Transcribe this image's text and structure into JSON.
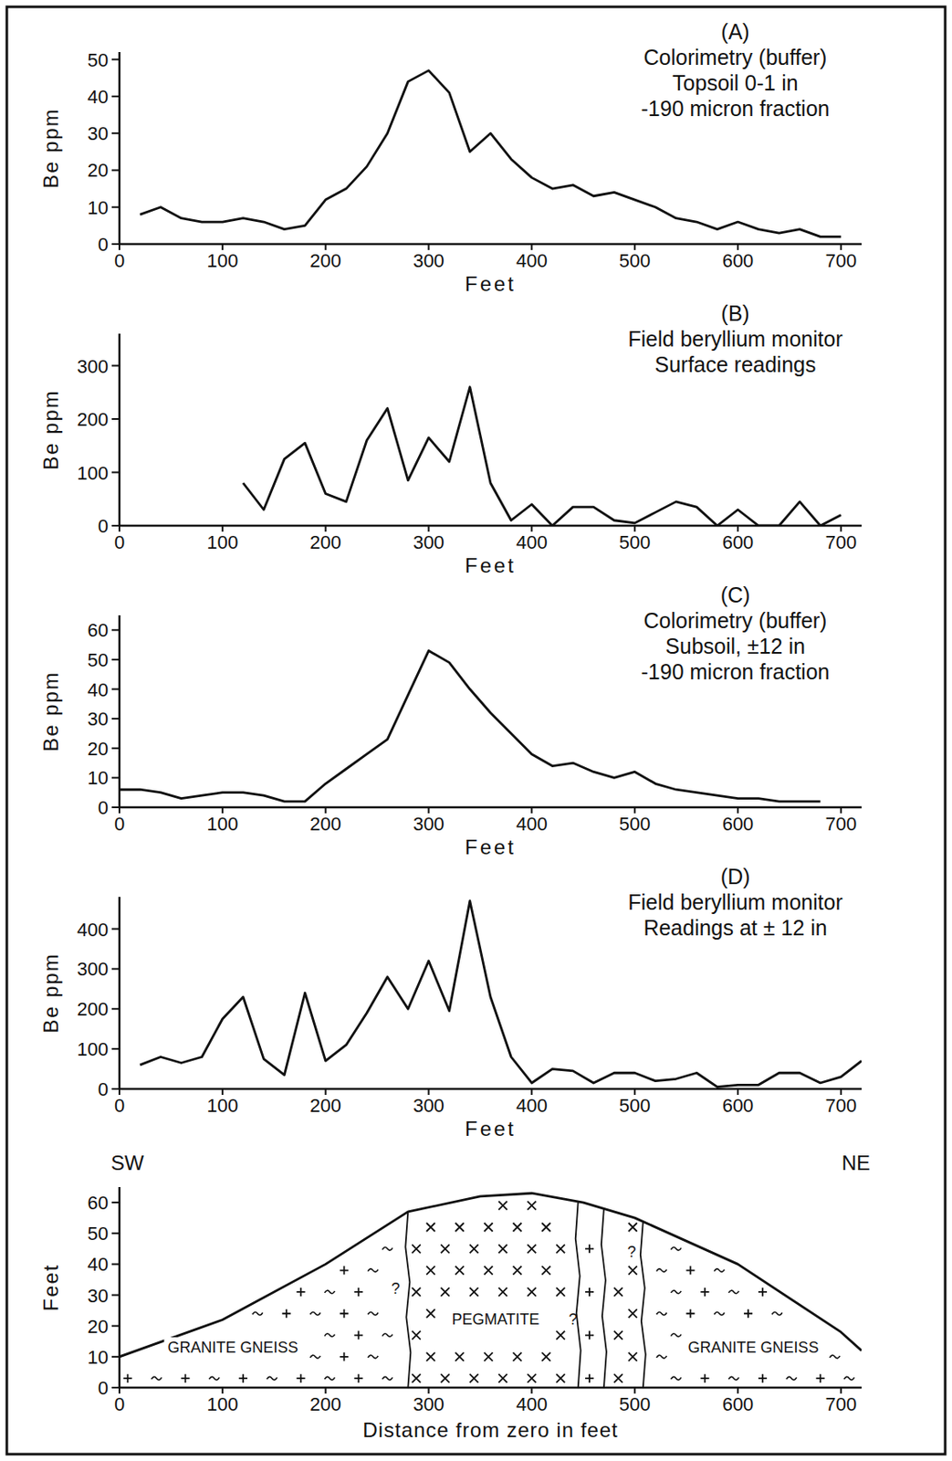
{
  "chart_data": [
    {
      "type": "line",
      "panel": "(A)",
      "title": "Colorimetry (buffer)",
      "subtitle": [
        "Topsoil  0-1 in",
        "-190 micron fraction"
      ],
      "x": [
        20,
        40,
        60,
        80,
        100,
        120,
        140,
        160,
        180,
        200,
        220,
        240,
        260,
        280,
        300,
        320,
        340,
        360,
        380,
        400,
        420,
        440,
        460,
        480,
        500,
        520,
        540,
        560,
        580,
        600,
        620,
        640,
        660,
        680,
        700
      ],
      "values": [
        8,
        10,
        7,
        6,
        6,
        7,
        6,
        4,
        5,
        12,
        15,
        21,
        30,
        44,
        47,
        41,
        25,
        30,
        23,
        18,
        15,
        16,
        13,
        14,
        12,
        10,
        7,
        6,
        4,
        6,
        4,
        3,
        4,
        2,
        2
      ],
      "xlim": [
        0,
        720
      ],
      "xticks": [
        0,
        100,
        200,
        300,
        400,
        500,
        600,
        700
      ],
      "ylim": [
        0,
        52
      ],
      "yticks": [
        0,
        10,
        20,
        30,
        40,
        50
      ],
      "x_label": "Feet",
      "y_label": "Be ppm",
      "color": "#111111"
    },
    {
      "type": "line",
      "panel": "(B)",
      "title": "Field beryllium monitor",
      "subtitle": [
        "Surface readings"
      ],
      "x": [
        120,
        140,
        160,
        180,
        200,
        220,
        240,
        260,
        280,
        300,
        320,
        340,
        360,
        380,
        400,
        420,
        440,
        460,
        480,
        500,
        520,
        540,
        560,
        580,
        600,
        620,
        640,
        660,
        680,
        700
      ],
      "values": [
        80,
        30,
        125,
        155,
        60,
        45,
        160,
        220,
        85,
        165,
        120,
        260,
        80,
        10,
        40,
        0,
        35,
        35,
        10,
        5,
        25,
        45,
        35,
        0,
        30,
        0,
        0,
        45,
        0,
        20
      ],
      "xlim": [
        0,
        720
      ],
      "xticks": [
        0,
        100,
        200,
        300,
        400,
        500,
        600,
        700
      ],
      "ylim": [
        0,
        360
      ],
      "yticks": [
        0,
        100,
        200,
        300
      ],
      "x_label": "Feet",
      "y_label": "Be ppm",
      "color": "#111111"
    },
    {
      "type": "line",
      "panel": "(C)",
      "title": "Colorimetry (buffer)",
      "subtitle": [
        "Subsoil, ±12 in",
        "-190 micron fraction"
      ],
      "x": [
        0,
        20,
        40,
        60,
        80,
        100,
        120,
        140,
        160,
        180,
        200,
        220,
        240,
        260,
        280,
        300,
        320,
        340,
        360,
        380,
        400,
        420,
        440,
        460,
        480,
        500,
        520,
        540,
        560,
        580,
        600,
        620,
        640,
        660,
        680
      ],
      "values": [
        6,
        6,
        5,
        3,
        4,
        5,
        5,
        4,
        2,
        2,
        8,
        13,
        18,
        23,
        38,
        53,
        49,
        40,
        32,
        25,
        18,
        14,
        15,
        12,
        10,
        12,
        8,
        6,
        5,
        4,
        3,
        3,
        2,
        2,
        2
      ],
      "xlim": [
        0,
        720
      ],
      "xticks": [
        0,
        100,
        200,
        300,
        400,
        500,
        600,
        700
      ],
      "ylim": [
        0,
        65
      ],
      "yticks": [
        0,
        10,
        20,
        30,
        40,
        50,
        60
      ],
      "x_label": "Feet",
      "y_label": "Be ppm",
      "color": "#111111"
    },
    {
      "type": "line",
      "panel": "(D)",
      "title": "Field beryllium monitor",
      "subtitle": [
        "Readings at ± 12 in"
      ],
      "x": [
        20,
        40,
        60,
        80,
        100,
        120,
        140,
        160,
        180,
        200,
        220,
        240,
        260,
        280,
        300,
        320,
        340,
        360,
        380,
        400,
        420,
        440,
        460,
        480,
        500,
        520,
        540,
        560,
        580,
        600,
        620,
        640,
        660,
        680,
        700,
        720
      ],
      "values": [
        60,
        80,
        65,
        80,
        175,
        230,
        75,
        35,
        240,
        70,
        110,
        190,
        280,
        200,
        320,
        195,
        470,
        230,
        80,
        15,
        50,
        45,
        15,
        40,
        40,
        20,
        25,
        40,
        5,
        10,
        10,
        40,
        40,
        15,
        30,
        70
      ],
      "xlim": [
        0,
        720
      ],
      "xticks": [
        0,
        100,
        200,
        300,
        400,
        500,
        600,
        700
      ],
      "ylim": [
        0,
        480
      ],
      "yticks": [
        0,
        100,
        200,
        300,
        400
      ],
      "x_label": "Feet",
      "y_label": "Be ppm",
      "color": "#111111"
    },
    {
      "type": "section",
      "left_label": "SW",
      "right_label": "NE",
      "surface": {
        "x": [
          0,
          100,
          200,
          280,
          350,
          400,
          450,
          500,
          600,
          700,
          720
        ],
        "y": [
          10,
          22,
          40,
          57,
          62,
          63,
          60,
          55,
          40,
          18,
          12
        ]
      },
      "contacts": [
        280,
        445,
        470,
        508
      ],
      "units": [
        {
          "label": "GRANITE GNEISS",
          "x": 110,
          "y": 13
        },
        {
          "label": "PEGMATITE",
          "x": 365,
          "y": 22
        },
        {
          "label": "GRANITE GNEISS",
          "x": 615,
          "y": 13
        }
      ],
      "uncertain": {
        "label": "?",
        "x": [
          268,
          440,
          497
        ],
        "y": [
          32,
          22,
          44
        ]
      },
      "xlim": [
        0,
        720
      ],
      "xticks": [
        0,
        100,
        200,
        300,
        400,
        500,
        600,
        700
      ],
      "ylim": [
        0,
        65
      ],
      "yticks": [
        0,
        10,
        20,
        30,
        40,
        50,
        60
      ],
      "x_label": "Distance  from  zero  in  feet",
      "y_label": "Feet",
      "color": "#111111"
    }
  ]
}
